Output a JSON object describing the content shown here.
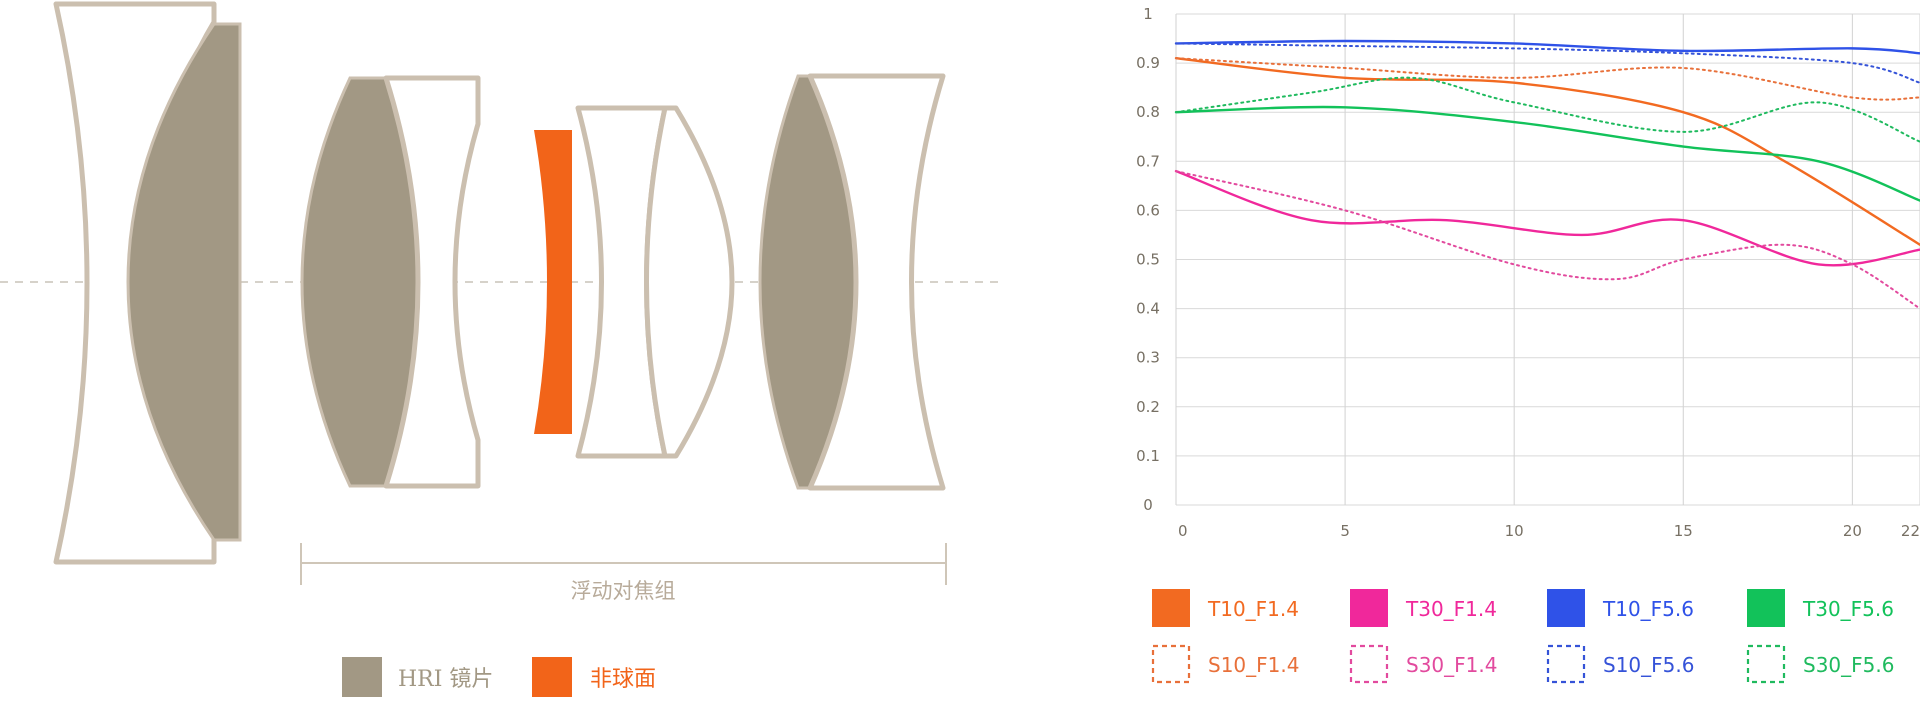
{
  "lens_diagram": {
    "colors": {
      "outline": "#cbbfaf",
      "hri_fill": "#a29884",
      "aspheric_fill": "#f26419",
      "axis": "#c9c3b8"
    },
    "group_label": "浮动对焦组",
    "legend": [
      {
        "label": "HRI 镜片",
        "color": "#a29884"
      },
      {
        "label": "非球面",
        "color": "#f26419"
      }
    ]
  },
  "chart_data": {
    "type": "line",
    "title": "",
    "xlabel": "",
    "ylabel": "",
    "xlim": [
      0,
      22
    ],
    "ylim": [
      0,
      1
    ],
    "x_ticks": [
      0,
      5,
      10,
      15,
      20,
      22
    ],
    "y_ticks": [
      0,
      0.1,
      0.2,
      0.3,
      0.4,
      0.5,
      0.6,
      0.7,
      0.8,
      0.9,
      1
    ],
    "grid": true,
    "legend_position": "bottom",
    "series": [
      {
        "name": "T10_F1.4",
        "color": "#f26a21",
        "dash": false,
        "x": [
          0,
          5,
          10,
          15,
          18,
          22
        ],
        "y": [
          0.91,
          0.87,
          0.86,
          0.8,
          0.7,
          0.53
        ]
      },
      {
        "name": "S10_F1.4",
        "color": "#e8703a",
        "dash": true,
        "x": [
          0,
          5,
          10,
          15,
          20,
          22
        ],
        "y": [
          0.91,
          0.89,
          0.87,
          0.89,
          0.83,
          0.83
        ]
      },
      {
        "name": "T30_F1.4",
        "color": "#f0289b",
        "dash": false,
        "x": [
          0,
          4,
          8,
          12,
          15,
          19,
          22
        ],
        "y": [
          0.68,
          0.58,
          0.58,
          0.55,
          0.58,
          0.49,
          0.52
        ]
      },
      {
        "name": "S30_F1.4",
        "color": "#e24a9e",
        "dash": true,
        "x": [
          0,
          5,
          10,
          13,
          15,
          18,
          20,
          22
        ],
        "y": [
          0.68,
          0.6,
          0.49,
          0.46,
          0.5,
          0.53,
          0.49,
          0.4
        ]
      },
      {
        "name": "T10_F5.6",
        "color": "#2f52e8",
        "dash": false,
        "x": [
          0,
          5,
          10,
          15,
          20,
          22
        ],
        "y": [
          0.94,
          0.945,
          0.94,
          0.925,
          0.93,
          0.92
        ]
      },
      {
        "name": "S10_F5.6",
        "color": "#3553d8",
        "dash": true,
        "x": [
          0,
          5,
          10,
          15,
          20,
          22
        ],
        "y": [
          0.94,
          0.935,
          0.93,
          0.92,
          0.9,
          0.86
        ]
      },
      {
        "name": "T30_F5.6",
        "color": "#12c25a",
        "dash": false,
        "x": [
          0,
          5,
          10,
          15,
          19,
          22
        ],
        "y": [
          0.8,
          0.81,
          0.78,
          0.73,
          0.7,
          0.62
        ]
      },
      {
        "name": "S30_F5.6",
        "color": "#1fba5e",
        "dash": true,
        "x": [
          0,
          4,
          7,
          10,
          15,
          19,
          22
        ],
        "y": [
          0.8,
          0.84,
          0.87,
          0.82,
          0.76,
          0.82,
          0.74
        ]
      }
    ]
  }
}
